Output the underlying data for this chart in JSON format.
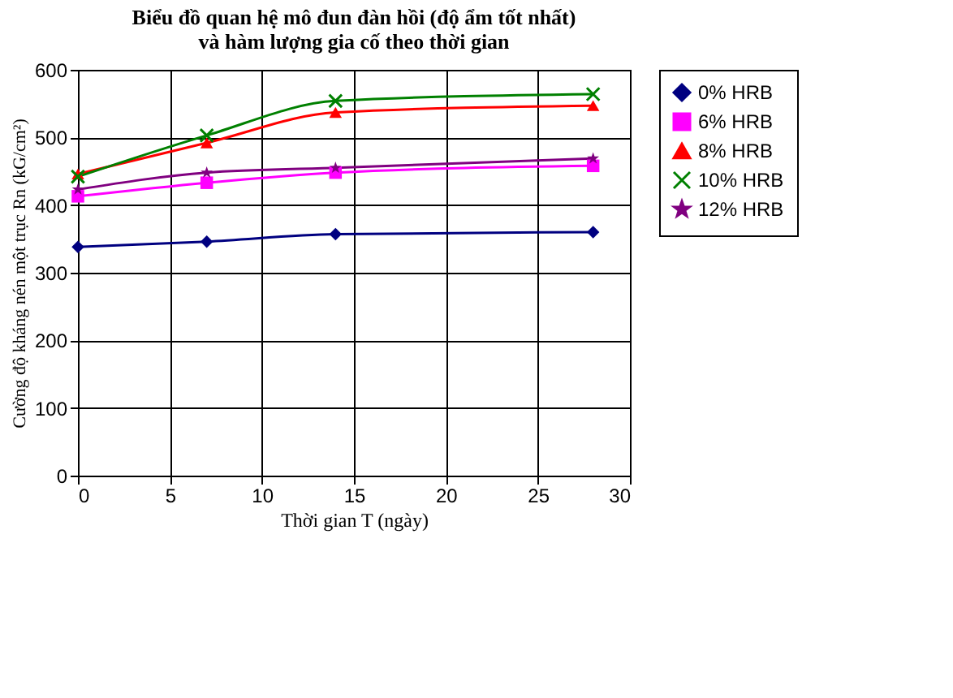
{
  "chart_data": {
    "type": "line",
    "title": "Biểu đồ quan hệ mô đun đàn hồi (độ ẩm tốt nhất)\nvà hàm lượng gia cố theo thời gian",
    "xlabel": "Thời gian T (ngày)",
    "ylabel": "Cường độ kháng nén một trục Rn (kG/cm²)",
    "x": [
      0,
      7,
      14,
      28
    ],
    "series": [
      {
        "name": "0% HRB",
        "color": "#000080",
        "marker": "diamond",
        "values": [
          338,
          346,
          357,
          360
        ]
      },
      {
        "name": "6% HRB",
        "color": "#ff00ff",
        "marker": "square",
        "values": [
          413,
          433,
          448,
          458
        ]
      },
      {
        "name": "8% HRB",
        "color": "#ff0000",
        "marker": "triangle",
        "values": [
          446,
          492,
          537,
          547
        ]
      },
      {
        "name": "10% HRB",
        "color": "#008000",
        "marker": "cross",
        "values": [
          442,
          503,
          554,
          564
        ]
      },
      {
        "name": "12% HRB",
        "color": "#800080",
        "marker": "star",
        "values": [
          423,
          448,
          455,
          469
        ]
      }
    ],
    "xlim": [
      0,
      30
    ],
    "xticks": [
      0,
      5,
      10,
      15,
      20,
      25,
      30
    ],
    "ylim": [
      0,
      600
    ],
    "yticks": [
      0,
      100,
      200,
      300,
      400,
      500,
      600
    ],
    "grid": true,
    "legend": "right",
    "line_style": "solid"
  }
}
